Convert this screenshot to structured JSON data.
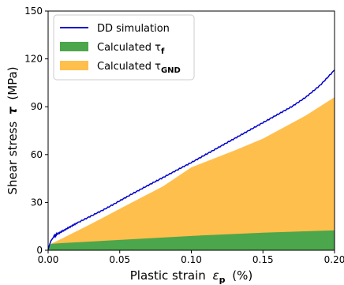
{
  "chart_data": {
    "type": "area",
    "xlabel": "Plastic strain",
    "xlabel_symbol": "ε",
    "xlabel_sub": "p",
    "xlabel_unit": "(%)",
    "ylabel": "Shear stress",
    "ylabel_symbol": "τ",
    "ylabel_unit": "(MPa)",
    "xlim": [
      0.0,
      0.2
    ],
    "ylim": [
      0,
      150
    ],
    "xticks": [
      0.0,
      0.05,
      0.1,
      0.15,
      0.2
    ],
    "xtick_labels": [
      "0.00",
      "0.05",
      "0.10",
      "0.15",
      "0.20"
    ],
    "yticks": [
      0,
      30,
      60,
      90,
      120,
      150
    ],
    "ytick_labels": [
      "0",
      "30",
      "60",
      "90",
      "120",
      "150"
    ],
    "grid": false,
    "legend_position": "top-left",
    "series": [
      {
        "name": "DD simulation",
        "kind": "line",
        "color": "#0000cc",
        "x": [
          0.0,
          0.001,
          0.002,
          0.004,
          0.006,
          0.01,
          0.015,
          0.02,
          0.03,
          0.04,
          0.05,
          0.06,
          0.07,
          0.08,
          0.09,
          0.1,
          0.11,
          0.12,
          0.13,
          0.14,
          0.15,
          0.16,
          0.17,
          0.18,
          0.19,
          0.2
        ],
        "values": [
          0.5,
          3.5,
          6.0,
          8.5,
          10.0,
          12.0,
          14.5,
          17.0,
          21.5,
          26.0,
          31.0,
          36.0,
          40.8,
          45.5,
          50.3,
          55.0,
          60.0,
          65.0,
          70.0,
          75.0,
          80.0,
          85.0,
          90.0,
          96.0,
          103.5,
          113.0
        ]
      },
      {
        "name": "Calculated τ",
        "name_sub": "f",
        "kind": "area",
        "color": "#4ca64c",
        "x": [
          0.0,
          0.002,
          0.01,
          0.05,
          0.1,
          0.15,
          0.2
        ],
        "values": [
          1.0,
          4.0,
          4.5,
          6.5,
          9.0,
          11.0,
          12.5
        ]
      },
      {
        "name": "Calculated τ",
        "name_sub": "GND",
        "kind": "area",
        "color": "#ffbf4d",
        "x": [
          0.0,
          0.002,
          0.01,
          0.03,
          0.05,
          0.08,
          0.1,
          0.13,
          0.15,
          0.18,
          0.2
        ],
        "values": [
          1.0,
          4.0,
          7.5,
          16.5,
          26.0,
          40.0,
          52.0,
          62.5,
          70.0,
          84.5,
          96.0
        ]
      }
    ]
  }
}
